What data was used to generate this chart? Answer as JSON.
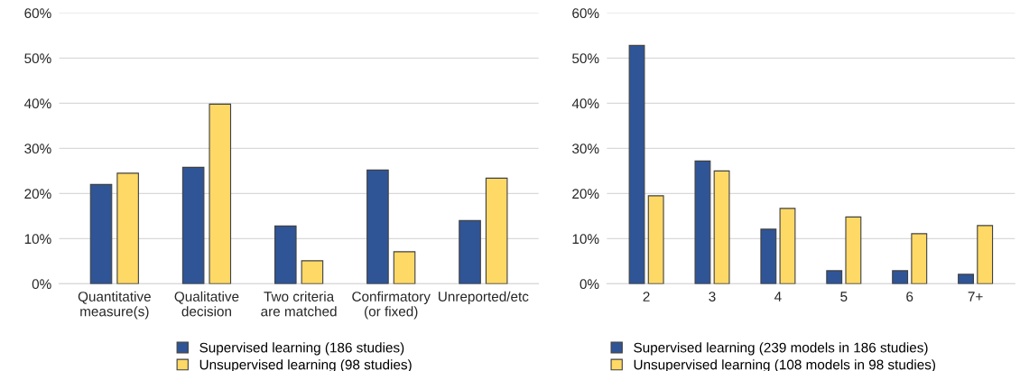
{
  "chart_data": [
    {
      "type": "bar",
      "categories": [
        "Quantitative\nmeasure(s)",
        "Qualitative\ndecision",
        "Two criteria\nare matched",
        "Confirmatory\n(or fixed)",
        "Unreported/etc"
      ],
      "series": [
        {
          "name": "Supervised learning (186 studies)",
          "color": "#2f5597",
          "values": [
            22,
            25.8,
            12.8,
            25.2,
            14
          ]
        },
        {
          "name": "Unsupervised learning (98 studies)",
          "color": "#ffd966",
          "values": [
            24.5,
            39.8,
            5.1,
            7.1,
            23.4
          ]
        }
      ],
      "ylim": [
        0,
        60
      ],
      "yticks": [
        {
          "value": 0,
          "label": "0%"
        },
        {
          "value": 10,
          "label": "10%"
        },
        {
          "value": 20,
          "label": "20%"
        },
        {
          "value": 30,
          "label": "30%"
        },
        {
          "value": 40,
          "label": "40%"
        },
        {
          "value": 50,
          "label": "50%"
        },
        {
          "value": 60,
          "label": "60%"
        }
      ],
      "grid": "y",
      "legend": "bottom"
    },
    {
      "type": "bar",
      "categories": [
        "2",
        "3",
        "4",
        "5",
        "6",
        "7+"
      ],
      "series": [
        {
          "name": "Supervised learning (239 models in 186 studies)",
          "color": "#2f5597",
          "values": [
            52.8,
            27.2,
            12.1,
            2.9,
            2.9,
            2.1
          ]
        },
        {
          "name": "Unsupervised learning (108 models in 98 studies)",
          "color": "#ffd966",
          "values": [
            19.5,
            25,
            16.7,
            14.8,
            11.1,
            12.9
          ]
        }
      ],
      "ylim": [
        0,
        60
      ],
      "yticks": [
        {
          "value": 0,
          "label": "0%"
        },
        {
          "value": 10,
          "label": "10%"
        },
        {
          "value": 20,
          "label": "20%"
        },
        {
          "value": 30,
          "label": "30%"
        },
        {
          "value": 40,
          "label": "40%"
        },
        {
          "value": 50,
          "label": "50%"
        },
        {
          "value": 60,
          "label": "60%"
        }
      ],
      "grid": "y",
      "legend": "bottom"
    }
  ]
}
